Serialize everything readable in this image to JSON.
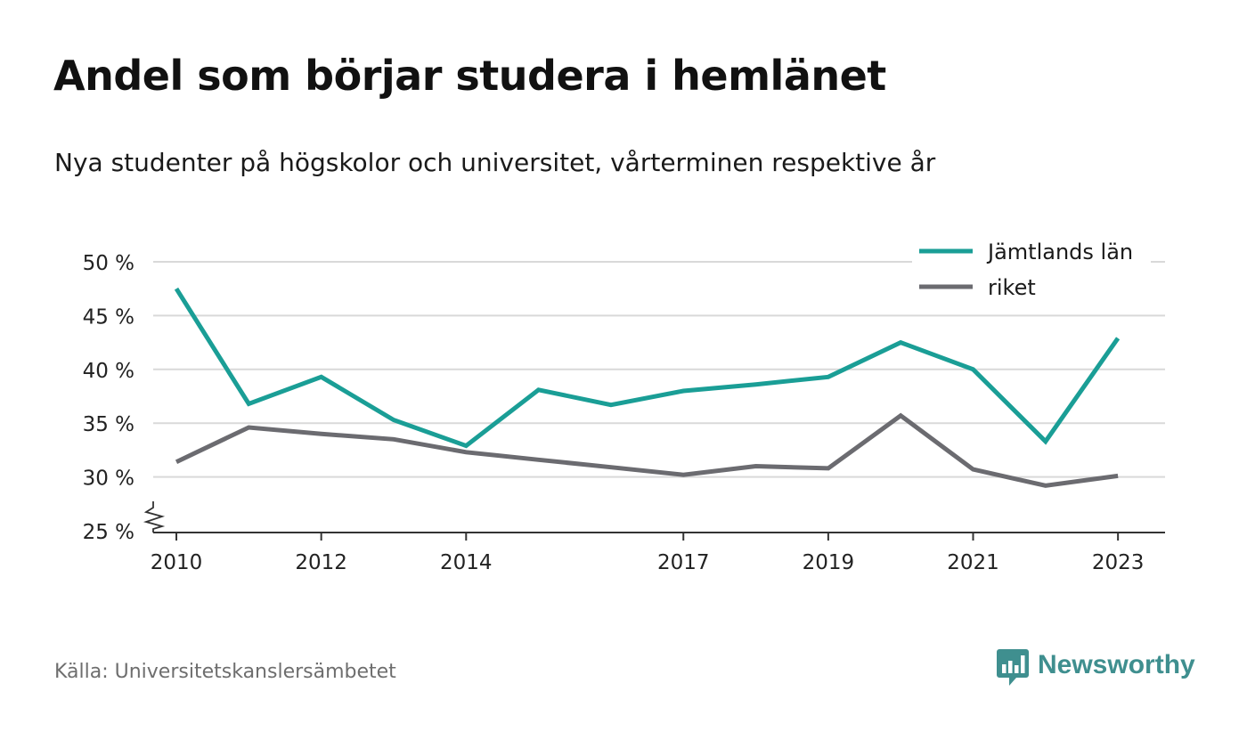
{
  "chart_data": {
    "type": "line",
    "title": "Andel som börjar studera i hemlänet",
    "subtitle": "Nya studenter på högskolor och universitet, vårterminen respektive år",
    "x": [
      2010,
      2011,
      2012,
      2013,
      2014,
      2015,
      2016,
      2017,
      2018,
      2019,
      2020,
      2021,
      2022,
      2023
    ],
    "x_ticks": [
      2010,
      2012,
      2014,
      2017,
      2019,
      2021,
      2023
    ],
    "x_tick_labels": [
      "2010",
      "2012",
      "2014",
      "2017",
      "2019",
      "2021",
      "2023"
    ],
    "xlim": [
      2009.68,
      2023.65
    ],
    "y_ticks": [
      25,
      30,
      35,
      40,
      45,
      50
    ],
    "y_tick_labels": [
      "25 %",
      "30 %",
      "35 %",
      "40 %",
      "45 %",
      "50 %"
    ],
    "ylim": [
      25,
      50
    ],
    "y_axis_break": true,
    "grid": true,
    "legend_position": "top-right",
    "series": [
      {
        "name": "Jämtlands län",
        "color": "#1a9e96",
        "values": [
          47.5,
          36.8,
          39.3,
          35.3,
          32.9,
          38.1,
          36.7,
          38.0,
          38.6,
          39.3,
          42.5,
          40.0,
          33.3,
          42.9
        ]
      },
      {
        "name": "riket",
        "color": "#6b6b70",
        "values": [
          31.4,
          34.6,
          34.0,
          33.5,
          32.3,
          31.6,
          30.9,
          30.2,
          31.0,
          30.8,
          35.7,
          30.7,
          29.2,
          30.1
        ]
      }
    ],
    "colors": {
      "grid": "#d9d9d9",
      "axis": "#333333",
      "tick_label": "#222222"
    }
  },
  "footer": {
    "source": "Källa: Universitetskanslersämbetet",
    "brand": "Newsworthy",
    "brand_color": "#3f8f8f",
    "brand_icon": "newsworthy-logo-icon"
  }
}
